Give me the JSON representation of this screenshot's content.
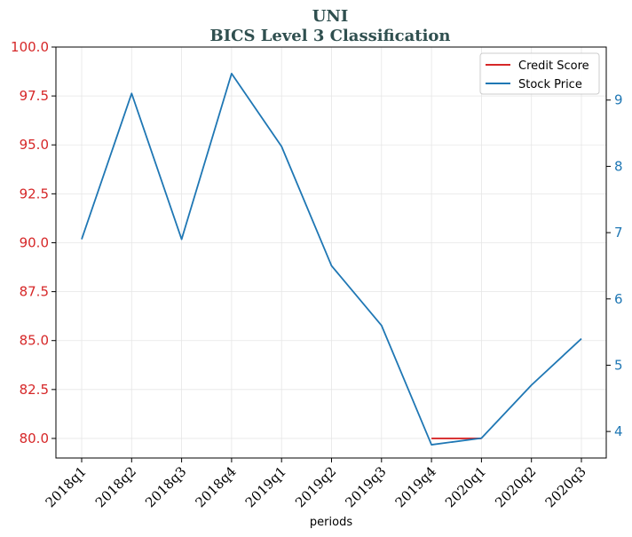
{
  "chart_data": {
    "type": "line",
    "title": "UNI",
    "subtitle": "BICS Level 3 Classification",
    "xlabel": "periods",
    "categories": [
      "2018q1",
      "2018q2",
      "2018q3",
      "2018q4",
      "2019q1",
      "2019q2",
      "2019q3",
      "2019q4",
      "2020q1",
      "2020q2",
      "2020q3"
    ],
    "series": [
      {
        "name": "Credit Score",
        "axis": "left",
        "color": "#d62728",
        "values": [
          null,
          null,
          null,
          null,
          null,
          null,
          null,
          80.0,
          80.0,
          null,
          null
        ]
      },
      {
        "name": "Stock Price",
        "axis": "right",
        "color": "#1f77b4",
        "values": [
          6.9,
          9.1,
          6.9,
          9.4,
          8.3,
          6.5,
          5.6,
          3.8,
          3.9,
          4.7,
          5.4
        ]
      }
    ],
    "y_left": {
      "ylim": [
        79.0,
        100.0
      ],
      "ticks": [
        "80.0",
        "82.5",
        "85.0",
        "87.5",
        "90.0",
        "92.5",
        "95.0",
        "97.5",
        "100.0"
      ],
      "tick_values": [
        80.0,
        82.5,
        85.0,
        87.5,
        90.0,
        92.5,
        95.0,
        97.5,
        100.0
      ],
      "color": "#d62728"
    },
    "y_right": {
      "ylim": [
        3.6,
        9.8
      ],
      "ticks": [
        "4",
        "5",
        "6",
        "7",
        "8",
        "9"
      ],
      "tick_values": [
        4,
        5,
        6,
        7,
        8,
        9
      ],
      "color": "#1f77b4"
    },
    "grid": true,
    "legend_position": "top-right"
  }
}
